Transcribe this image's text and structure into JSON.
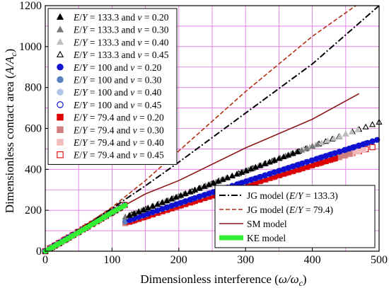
{
  "chart_data": {
    "type": "scatter",
    "title": "",
    "xlabel": {
      "main": "Dimensionless interference (",
      "sym": "ω/ω",
      "sub": "c",
      "end": ")"
    },
    "ylabel": {
      "main": "Dimensionless contact area (",
      "sym": "A/A",
      "sub": "c",
      "end": ")"
    },
    "xlim": [
      0,
      500
    ],
    "ylim": [
      0,
      1200
    ],
    "xticks": [
      "0",
      "100",
      "200",
      "300",
      "400",
      "500"
    ],
    "yticks": [
      "0",
      "200",
      "400",
      "600",
      "800",
      "1000",
      "1200"
    ],
    "grid": true,
    "grid_color": "#e070e0",
    "legend_left_position": "top-left",
    "legend_right_position": "bottom-right",
    "scatter_series": [
      {
        "name": {
          "ratio": "133.3",
          "nu": "0.20"
        },
        "marker": "triangle",
        "fill": "#000000",
        "stroke": "#000000",
        "k": 1.95,
        "xmax": 380
      },
      {
        "name": {
          "ratio": "133.3",
          "nu": "0.30"
        },
        "marker": "triangle",
        "fill": "#7a7a7a",
        "stroke": "#7a7a7a",
        "k": 1.95,
        "xmax": 410
      },
      {
        "name": {
          "ratio": "133.3",
          "nu": "0.40"
        },
        "marker": "triangle",
        "fill": "#bdbdbd",
        "stroke": "#bdbdbd",
        "k": 1.95,
        "xmax": 470
      },
      {
        "name": {
          "ratio": "133.3",
          "nu": "0.45"
        },
        "marker": "triangle",
        "fill": "none",
        "stroke": "#000000",
        "k": 1.95,
        "xmax": 500
      },
      {
        "name": {
          "ratio": "100",
          "nu": "0.20"
        },
        "marker": "circle",
        "fill": "#1010d0",
        "stroke": "#1010d0",
        "k": 1.69,
        "xmax": 500
      },
      {
        "name": {
          "ratio": "100",
          "nu": "0.30"
        },
        "marker": "circle",
        "fill": "#5a80c0",
        "stroke": "#5a80c0",
        "k": 1.69,
        "xmax": 470
      },
      {
        "name": {
          "ratio": "100",
          "nu": "0.40"
        },
        "marker": "circle",
        "fill": "#b0c4e6",
        "stroke": "#b0c4e6",
        "k": 1.69,
        "xmax": 440
      },
      {
        "name": {
          "ratio": "100",
          "nu": "0.45"
        },
        "marker": "circle",
        "fill": "none",
        "stroke": "#0000d0",
        "k": 1.69,
        "xmax": 490
      },
      {
        "name": {
          "ratio": "79.4",
          "nu": "0.20"
        },
        "marker": "square",
        "fill": "#dd0000",
        "stroke": "#dd0000",
        "k": 1.6,
        "xmax": 440
      },
      {
        "name": {
          "ratio": "79.4",
          "nu": "0.30"
        },
        "marker": "square",
        "fill": "#d08080",
        "stroke": "#d08080",
        "k": 1.6,
        "xmax": 460
      },
      {
        "name": {
          "ratio": "79.4",
          "nu": "0.40"
        },
        "marker": "square",
        "fill": "#f2bcbc",
        "stroke": "#f2bcbc",
        "k": 1.6,
        "xmax": 480
      },
      {
        "name": {
          "ratio": "79.4",
          "nu": "0.45"
        },
        "marker": "square",
        "fill": "none",
        "stroke": "#dd0000",
        "k": 1.6,
        "xmax": 495
      }
    ],
    "line_series": [
      {
        "name": "JG model (",
        "ratio": "133.3",
        "end": ")",
        "style": "dashdot",
        "color": "#000000",
        "width": 2,
        "points": [
          [
            0,
            0
          ],
          [
            50,
            105
          ],
          [
            100,
            210
          ],
          [
            150,
            320
          ],
          [
            200,
            435
          ],
          [
            300,
            675
          ],
          [
            400,
            915
          ],
          [
            500,
            1205
          ]
        ]
      },
      {
        "name": "JG model (",
        "ratio": "79.4",
        "end": ")",
        "style": "dashed",
        "color": "#b03010",
        "width": 1.6,
        "points": [
          [
            0,
            0
          ],
          [
            50,
            105
          ],
          [
            100,
            215
          ],
          [
            150,
            345
          ],
          [
            200,
            490
          ],
          [
            300,
            780
          ],
          [
            400,
            1050
          ],
          [
            465,
            1205
          ]
        ]
      },
      {
        "name": "SM model",
        "ratio": "",
        "end": "",
        "style": "solid",
        "color": "#8b1a1a",
        "width": 1.6,
        "points": [
          [
            0,
            0
          ],
          [
            50,
            95
          ],
          [
            100,
            190
          ],
          [
            150,
            280
          ],
          [
            200,
            345
          ],
          [
            300,
            505
          ],
          [
            400,
            645
          ],
          [
            470,
            770
          ]
        ]
      },
      {
        "name": "KE model",
        "ratio": "",
        "end": "",
        "style": "solid",
        "color": "#33ee33",
        "width": 7,
        "points": [
          [
            0,
            0
          ],
          [
            25,
            45
          ],
          [
            50,
            92
          ],
          [
            75,
            140
          ],
          [
            100,
            190
          ],
          [
            120,
            225
          ]
        ]
      }
    ],
    "legend_text": {
      "E": "E",
      "slash": "/",
      "Y": "Y",
      "eq": " = ",
      "and": " and ",
      "nu": "ν",
      "nueq": " = "
    }
  }
}
